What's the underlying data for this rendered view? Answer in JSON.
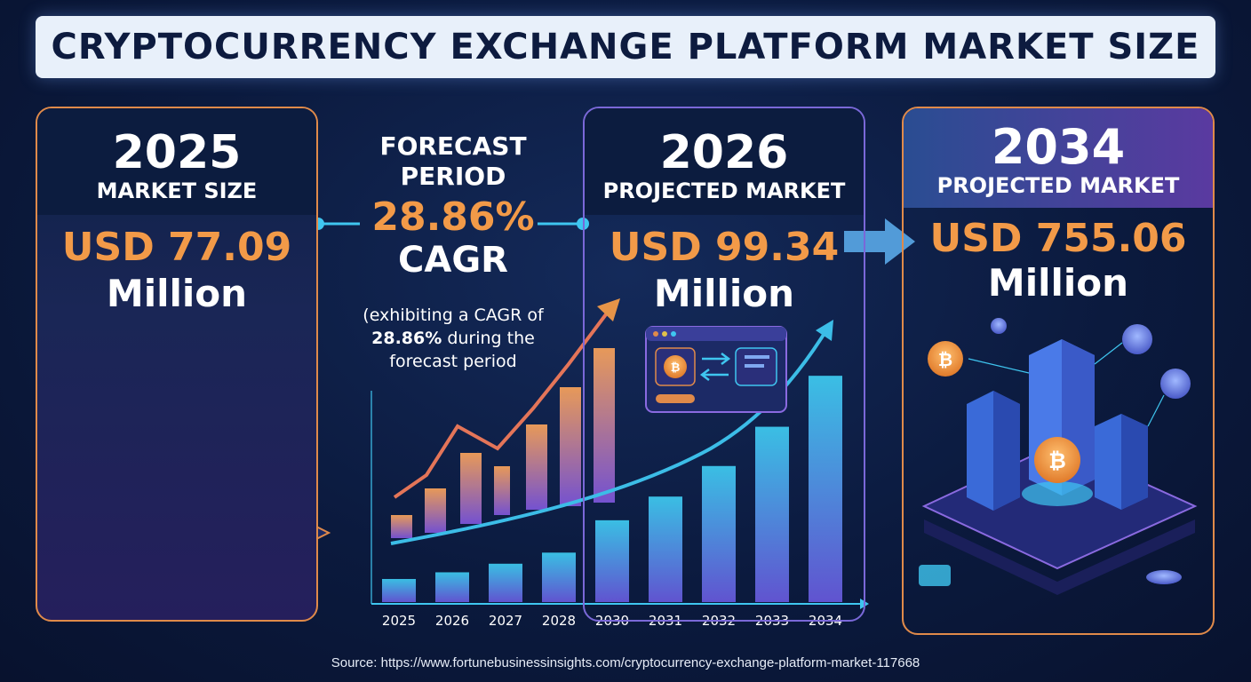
{
  "title": "CRYPTOCURRENCY EXCHANGE PLATFORM MARKET SIZE",
  "cards": {
    "c2025": {
      "year": "2025",
      "label": "MARKET SIZE",
      "value": "USD 77.09",
      "unit": "Million"
    },
    "c2026": {
      "year": "2026",
      "label": "PROJECTED MARKET",
      "value": "USD 99.34",
      "unit": "Million"
    },
    "c2034": {
      "year": "2034",
      "label": "PROJECTED MARKET",
      "value": "USD 755.06",
      "unit": "Million"
    }
  },
  "forecast": {
    "line1": "FORECAST",
    "line2": "PERIOD",
    "cagr_value": "28.86%",
    "cagr_label": "CAGR",
    "note_pre": "(exhibiting a CAGR of",
    "note_bold": "28.86%",
    "note_post": " during the forecast period"
  },
  "source": "Source: https://www.fortunebusinessinsights.com/cryptocurrency-exchange-platform-market-117668",
  "colors": {
    "accent_orange": "#f29a48",
    "bar_blue": "#3fc6f0",
    "bar_purple": "#8a5ee0",
    "background": "#0b1a3e"
  },
  "chart_data": {
    "type": "bar",
    "categories": [
      "2025",
      "2026",
      "2027",
      "2028",
      "2030",
      "2031",
      "2032",
      "2033",
      "2034"
    ],
    "series": [
      {
        "values": [
          77.09,
          99.34,
          128,
          165,
          273,
          352,
          454,
          585,
          755.06
        ]
      }
    ],
    "ylim": [
      0,
      800
    ],
    "grid": false,
    "legend": "none"
  }
}
